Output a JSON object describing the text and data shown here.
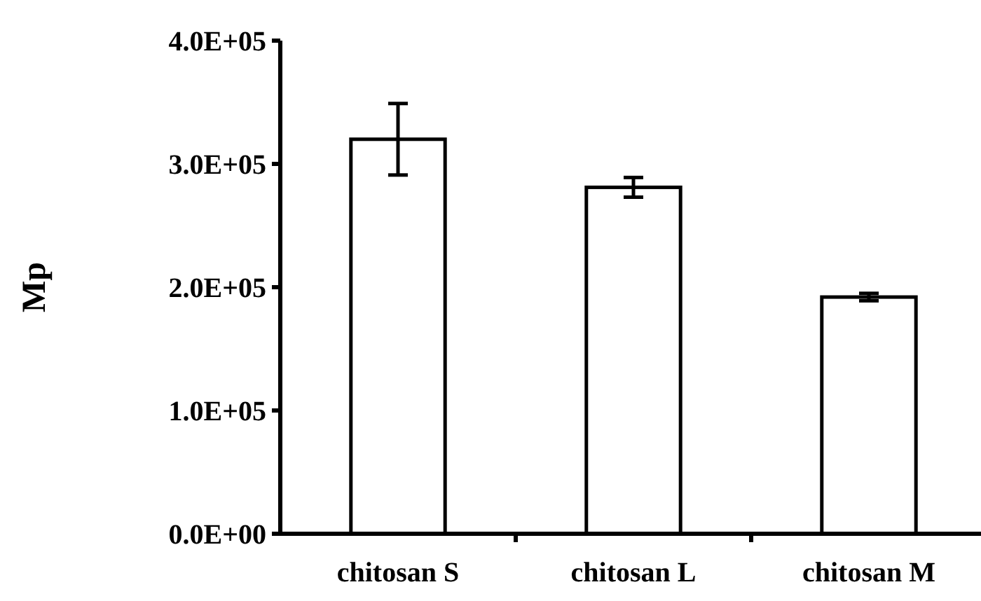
{
  "chart_data": {
    "type": "bar",
    "ylabel": "Mp",
    "categories": [
      "chitosan S",
      "chitosan L",
      "chitosan M"
    ],
    "values": [
      320000,
      281000,
      192000
    ],
    "errors": [
      29000,
      8000,
      3000
    ],
    "color": "#ffffff",
    "ylim": [
      0,
      400000
    ],
    "yticks": [
      {
        "value": 0,
        "label": "0.0E+00"
      },
      {
        "value": 100000,
        "label": "1.0E+05"
      },
      {
        "value": 200000,
        "label": "2.0E+05"
      },
      {
        "value": 300000,
        "label": "3.0E+05"
      },
      {
        "value": 400000,
        "label": "4.0E+05"
      }
    ],
    "grid": false
  }
}
